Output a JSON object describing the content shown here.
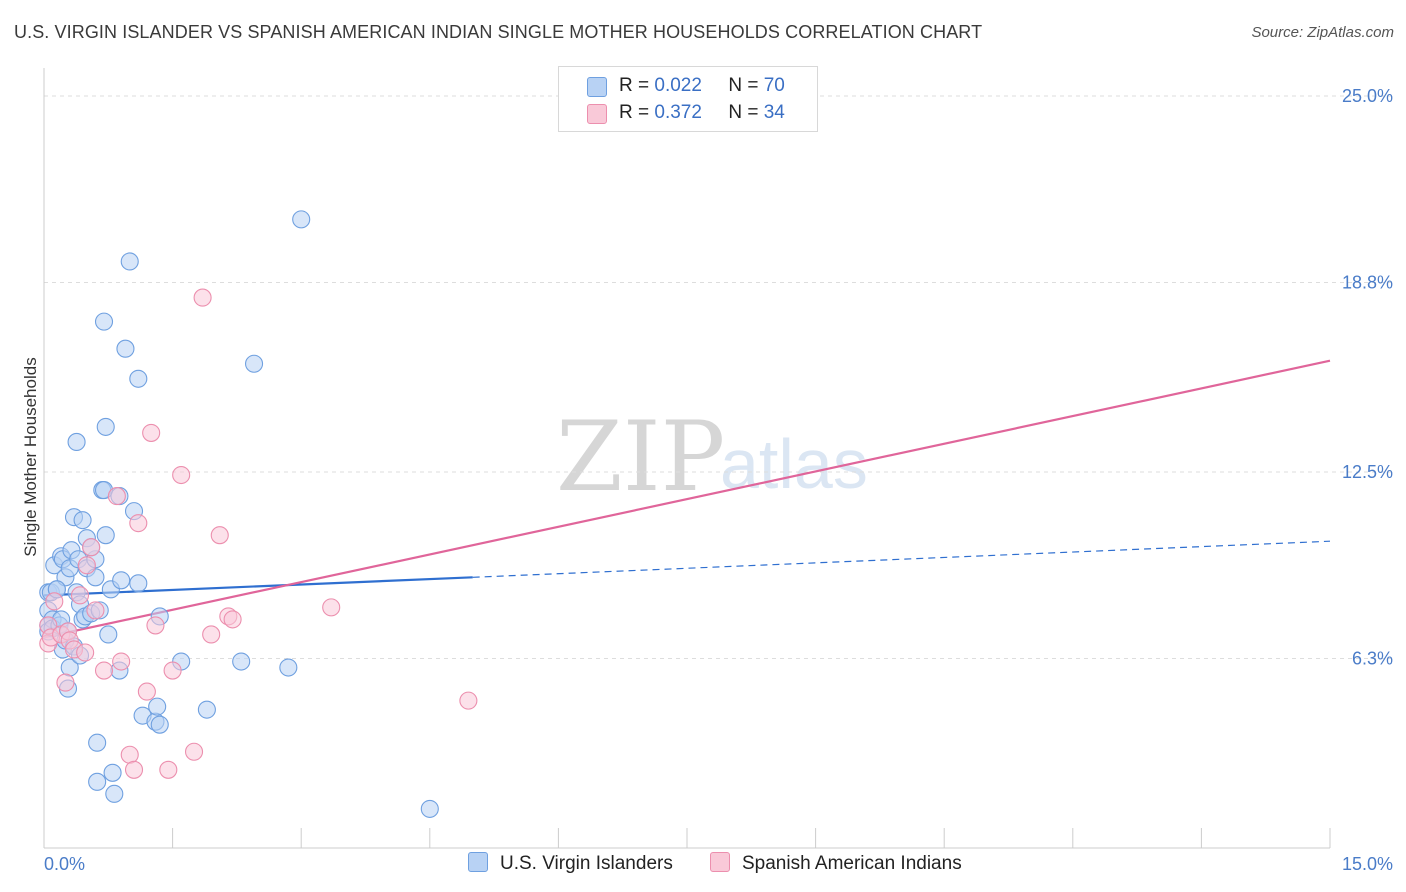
{
  "title": "U.S. VIRGIN ISLANDER VS SPANISH AMERICAN INDIAN SINGLE MOTHER HOUSEHOLDS CORRELATION CHART",
  "source": "Source: ZipAtlas.com",
  "watermark": {
    "zip": "ZIP",
    "atlas": "atlas"
  },
  "legend": {
    "rows": [
      {
        "r_label": "R =",
        "r_value": "0.022",
        "n_label": "N =",
        "n_value": "70",
        "color": "#a9c8f0"
      },
      {
        "r_label": "R =",
        "r_value": "0.372",
        "n_label": "N =",
        "n_value": "34",
        "color": "#f6b8cb"
      }
    ]
  },
  "bottom_legend": {
    "series1": "U.S. Virgin Islanders",
    "series2": "Spanish American Indians"
  },
  "chart_data": {
    "type": "scatter",
    "title": "U.S. VIRGIN ISLANDER VS SPANISH AMERICAN INDIAN SINGLE MOTHER HOUSEHOLDS CORRELATION CHART",
    "xlabel": "",
    "ylabel": "Single Mother Households",
    "xlim": [
      0,
      15
    ],
    "ylim": [
      0,
      25.6
    ],
    "x_tick_labels": [
      "0.0%",
      "15.0%"
    ],
    "y_ticks": [
      6.3,
      12.5,
      18.8,
      25.0
    ],
    "y_tick_labels": [
      "6.3%",
      "12.5%",
      "18.8%",
      "25.0%"
    ],
    "series": [
      {
        "name": "U.S. Virgin Islanders",
        "color": "#6fa0e0",
        "fill": "#b8d2f4",
        "trend": {
          "x0": 0,
          "y0": 8.4,
          "x1": 5.0,
          "y1": 9.0,
          "dash_x1": 15.0,
          "dash_y1": 10.2,
          "color": "#2f6fd0"
        },
        "points": [
          [
            0.05,
            8.5
          ],
          [
            0.05,
            7.9
          ],
          [
            0.05,
            7.4
          ],
          [
            0.05,
            7.2
          ],
          [
            0.08,
            8.5
          ],
          [
            0.1,
            7.6
          ],
          [
            0.1,
            7.3
          ],
          [
            0.12,
            9.4
          ],
          [
            0.15,
            8.6
          ],
          [
            0.18,
            7.4
          ],
          [
            0.2,
            9.7
          ],
          [
            0.22,
            6.6
          ],
          [
            0.22,
            9.6
          ],
          [
            0.25,
            9.0
          ],
          [
            0.25,
            6.9
          ],
          [
            0.28,
            5.3
          ],
          [
            0.3,
            6.0
          ],
          [
            0.3,
            9.3
          ],
          [
            0.32,
            9.9
          ],
          [
            0.35,
            11.0
          ],
          [
            0.38,
            8.5
          ],
          [
            0.38,
            13.5
          ],
          [
            0.4,
            9.6
          ],
          [
            0.42,
            8.1
          ],
          [
            0.45,
            10.9
          ],
          [
            0.45,
            7.6
          ],
          [
            0.48,
            7.7
          ],
          [
            0.5,
            10.3
          ],
          [
            0.5,
            9.3
          ],
          [
            0.55,
            7.8
          ],
          [
            0.6,
            9.0
          ],
          [
            0.6,
            9.6
          ],
          [
            0.62,
            3.5
          ],
          [
            0.62,
            2.2
          ],
          [
            0.68,
            11.9
          ],
          [
            0.7,
            17.5
          ],
          [
            0.7,
            11.9
          ],
          [
            0.72,
            14.0
          ],
          [
            0.72,
            10.4
          ],
          [
            0.75,
            7.1
          ],
          [
            0.78,
            8.6
          ],
          [
            0.8,
            2.5
          ],
          [
            0.82,
            1.8
          ],
          [
            0.88,
            11.7
          ],
          [
            0.88,
            5.9
          ],
          [
            0.95,
            16.6
          ],
          [
            1.0,
            19.5
          ],
          [
            1.05,
            11.2
          ],
          [
            1.1,
            8.8
          ],
          [
            1.1,
            15.6
          ],
          [
            1.15,
            4.4
          ],
          [
            1.3,
            4.2
          ],
          [
            1.32,
            4.7
          ],
          [
            1.35,
            4.1
          ],
          [
            1.35,
            7.7
          ],
          [
            1.6,
            6.2
          ],
          [
            1.9,
            4.6
          ],
          [
            2.3,
            6.2
          ],
          [
            2.45,
            16.1
          ],
          [
            2.85,
            6.0
          ],
          [
            3.0,
            20.9
          ],
          [
            4.5,
            1.3
          ],
          [
            0.15,
            8.6
          ],
          [
            0.2,
            7.6
          ],
          [
            0.28,
            7.2
          ],
          [
            0.35,
            6.7
          ],
          [
            0.42,
            6.4
          ],
          [
            0.55,
            10.0
          ],
          [
            0.65,
            7.9
          ],
          [
            0.9,
            8.9
          ]
        ]
      },
      {
        "name": "Spanish American Indians",
        "color": "#ec8fae",
        "fill": "#f9c9d8",
        "trend": {
          "x0": 0,
          "y0": 7.0,
          "x1": 15.0,
          "y1": 16.2,
          "color": "#e0659a"
        },
        "points": [
          [
            0.05,
            6.8
          ],
          [
            0.05,
            7.4
          ],
          [
            0.08,
            7.0
          ],
          [
            0.12,
            8.2
          ],
          [
            0.2,
            7.1
          ],
          [
            0.25,
            5.5
          ],
          [
            0.28,
            7.2
          ],
          [
            0.3,
            6.9
          ],
          [
            0.35,
            6.6
          ],
          [
            0.42,
            8.4
          ],
          [
            0.48,
            6.5
          ],
          [
            0.5,
            9.4
          ],
          [
            0.55,
            10.0
          ],
          [
            0.6,
            7.9
          ],
          [
            0.7,
            5.9
          ],
          [
            0.85,
            11.7
          ],
          [
            0.9,
            6.2
          ],
          [
            1.0,
            3.1
          ],
          [
            1.05,
            2.6
          ],
          [
            1.1,
            10.8
          ],
          [
            1.2,
            5.2
          ],
          [
            1.25,
            13.8
          ],
          [
            1.3,
            7.4
          ],
          [
            1.45,
            2.6
          ],
          [
            1.5,
            5.9
          ],
          [
            1.6,
            12.4
          ],
          [
            1.75,
            3.2
          ],
          [
            1.85,
            18.3
          ],
          [
            1.95,
            7.1
          ],
          [
            2.05,
            10.4
          ],
          [
            2.15,
            7.7
          ],
          [
            2.2,
            7.6
          ],
          [
            3.35,
            8.0
          ],
          [
            4.95,
            4.9
          ]
        ]
      }
    ]
  }
}
